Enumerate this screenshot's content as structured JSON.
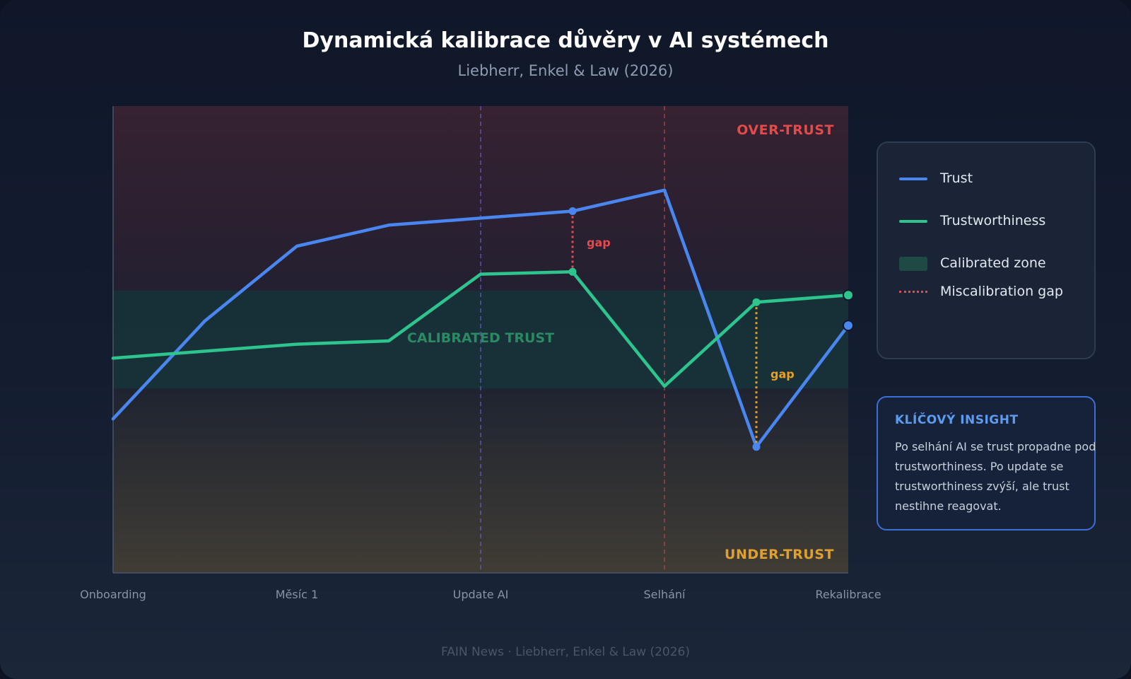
{
  "header": {
    "title": "Dynamická kalibrace důvěry v AI systémech",
    "subtitle": "Liebherr, Enkel & Law (2026)"
  },
  "chart_data": {
    "type": "line",
    "x_ticks": [
      "Onboarding",
      "Měsíc 1",
      "Update AI",
      "Selhání",
      "Rekalibrace"
    ],
    "x": [
      0,
      0.5,
      1,
      1.5,
      2,
      2.5,
      3,
      3.5,
      4
    ],
    "ylim": [
      0,
      100
    ],
    "series": [
      {
        "name": "Trust",
        "values": [
          33,
          54,
          70,
          74.5,
          76,
          77.5,
          82,
          27,
          53
        ],
        "color": "#4a86f0"
      },
      {
        "name": "Trustworthiness",
        "values": [
          46,
          47.5,
          49,
          49.7,
          64,
          64.5,
          40,
          58,
          59.5
        ],
        "color": "#2ec48e"
      }
    ],
    "zones": [
      {
        "label": "OVER-TRUST",
        "from": 60.5,
        "to": 100,
        "color": "#e24b4b"
      },
      {
        "label": "CALIBRATED TRUST",
        "from": 39.5,
        "to": 60.5,
        "color": "#2f9a6b"
      },
      {
        "label": "UNDER-TRUST",
        "from": 0,
        "to": 39.5,
        "color": "#e0a030"
      }
    ],
    "vlines": [
      {
        "x": 2,
        "color": "#6b5fcf"
      },
      {
        "x": 3,
        "color": "#b8484c"
      }
    ],
    "gaps": [
      {
        "x": 2.5,
        "from": 64.5,
        "to": 77.5,
        "label": "gap",
        "color": "#e24b4b"
      },
      {
        "x": 3.5,
        "from": 27,
        "to": 58,
        "label": "gap",
        "color": "#e8a020"
      }
    ],
    "markers": [
      {
        "series": 0,
        "x": 2.5,
        "y": 77.5
      },
      {
        "series": 1,
        "x": 2.5,
        "y": 64.5
      },
      {
        "series": 0,
        "x": 3.5,
        "y": 27
      },
      {
        "series": 1,
        "x": 3.5,
        "y": 58
      },
      {
        "series": 0,
        "x": 4,
        "y": 53
      },
      {
        "series": 1,
        "x": 4,
        "y": 59.5
      }
    ],
    "grid": false,
    "legend_position": "right"
  },
  "legend": {
    "items": [
      {
        "label": "Trust",
        "kind": "line",
        "color": "#4a86f0"
      },
      {
        "label": "Trustworthiness",
        "kind": "line",
        "color": "#2ec48e"
      },
      {
        "label": "Calibrated zone",
        "kind": "zone",
        "color": "#1f4a44"
      },
      {
        "label": "Miscalibration gap",
        "kind": "dotted",
        "color": "#e24b4b"
      }
    ]
  },
  "insight": {
    "title": "KLÍČOVÝ INSIGHT",
    "text": "Po selhání AI se trust propadne pod trustworthiness. Po update se trustworthiness zvýší, ale trust nestihne reagovat."
  },
  "footer": "FAIN News · Liebherr, Enkel & Law (2026)"
}
